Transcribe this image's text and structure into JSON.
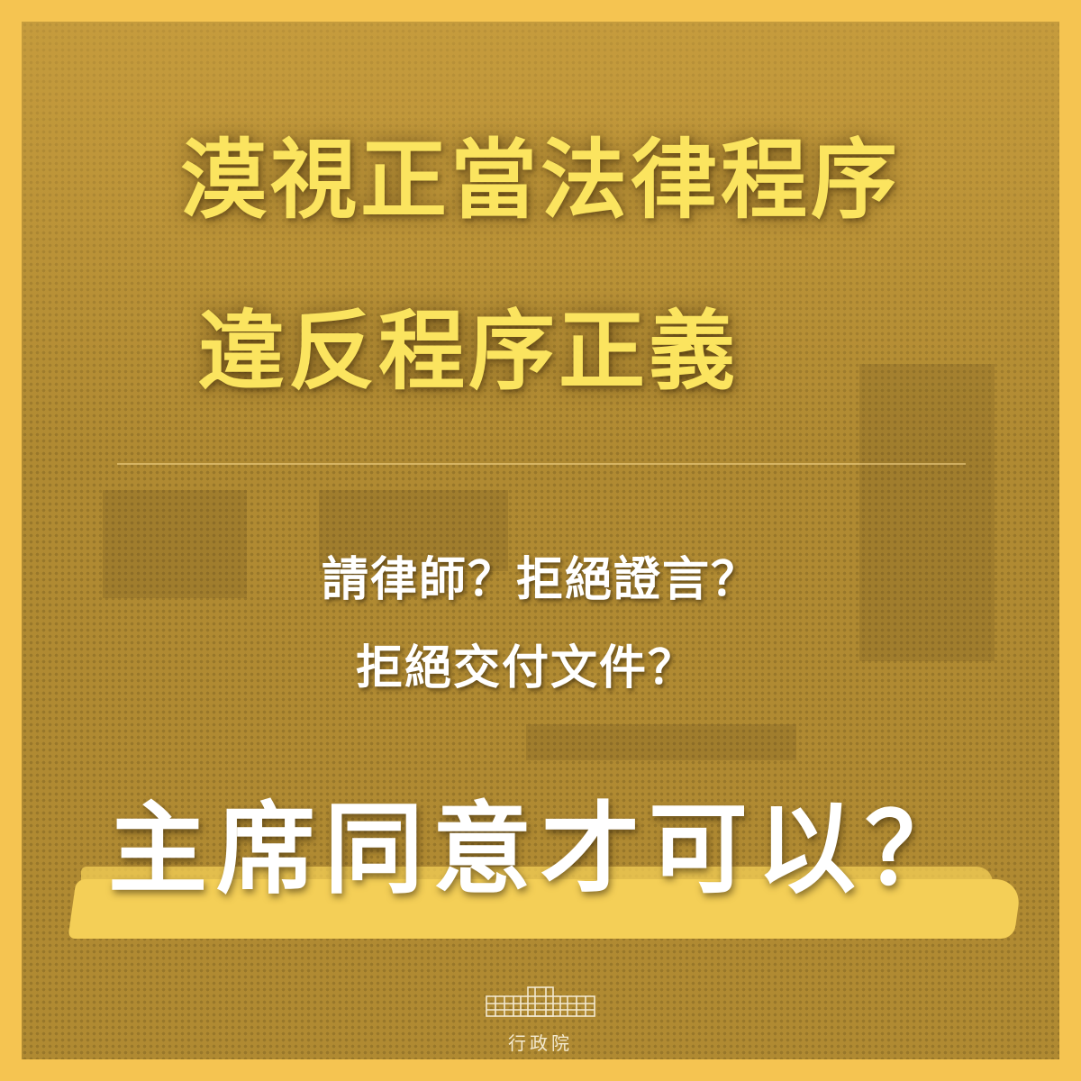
{
  "headline": {
    "line1": "漠視正當法律程序",
    "line2": "違反程序正義"
  },
  "questions": {
    "line1": "請律師？拒絕證言？",
    "line2": "拒絕交付文件？"
  },
  "punchline": "主席同意才可以？",
  "logo": {
    "icon": "executive-yuan-building-icon",
    "name": "行政院"
  },
  "colors": {
    "frame": "#f5c451",
    "background": "#b08a32",
    "headline": "#fbe45f",
    "question_text": "#ffffff",
    "brush_highlight": "#f4cf57"
  }
}
